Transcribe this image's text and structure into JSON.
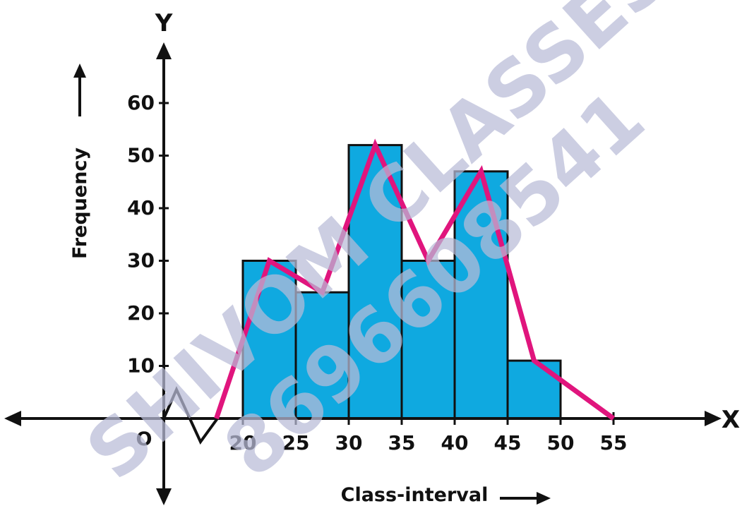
{
  "chart_data": {
    "type": "bar",
    "subtype": "histogram with frequency polygon",
    "bins": [
      [
        20,
        25
      ],
      [
        25,
        30
      ],
      [
        30,
        35
      ],
      [
        35,
        40
      ],
      [
        40,
        45
      ],
      [
        45,
        50
      ]
    ],
    "values": [
      30,
      24,
      52,
      30,
      47,
      11
    ],
    "polygon": {
      "x": [
        17.5,
        22.5,
        27.5,
        32.5,
        37.5,
        42.5,
        47.5,
        55
      ],
      "y": [
        0,
        30,
        24,
        52,
        30,
        47,
        11,
        0
      ]
    },
    "xticks": [
      "20",
      "25",
      "30",
      "35",
      "40",
      "45",
      "50",
      "55"
    ],
    "yticks": [
      "10",
      "20",
      "30",
      "40",
      "50",
      "60"
    ],
    "xlim": [
      20,
      55
    ],
    "ylim": [
      0,
      60
    ],
    "xlabel": "Class-interval",
    "ylabel": "Frequency",
    "x_axis_letter": "X",
    "y_axis_letter": "Y",
    "origin_label": "O",
    "axis_break": true,
    "grid": false,
    "colors": {
      "bar_fill": "#0fa9e0",
      "bar_stroke": "#111111",
      "polygon": "#e0157d",
      "axis": "#111111",
      "watermark": "#b9bcd8"
    }
  },
  "watermark": {
    "line1": "SHIVOM CLASSES",
    "line2": "8696608541"
  }
}
